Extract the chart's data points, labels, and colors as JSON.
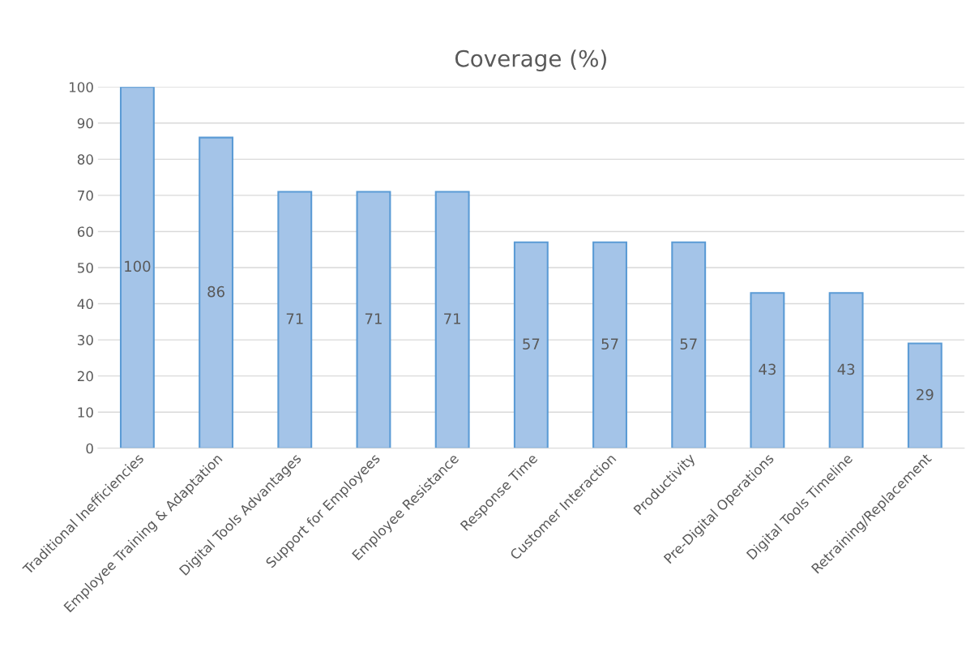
{
  "chart_data": {
    "type": "bar",
    "title": "Coverage (%)",
    "categories": [
      "Traditional Inefficiencies",
      "Employee Training & Adaptation",
      "Digital Tools Advantages",
      "Support for Employees",
      "Employee Resistance",
      "Response Time",
      "Customer Interaction",
      "Productivity",
      "Pre-Digital Operations",
      "Digital Tools Timeline",
      "Retraining/Replacement"
    ],
    "values": [
      100,
      86,
      71,
      71,
      71,
      57,
      57,
      57,
      43,
      43,
      29
    ],
    "color": "#a4c4e8",
    "ylim": [
      0,
      100
    ],
    "yticks": [
      0,
      10,
      20,
      30,
      40,
      50,
      60,
      70,
      80,
      90,
      100
    ],
    "grid": "y",
    "data_labels": true
  }
}
